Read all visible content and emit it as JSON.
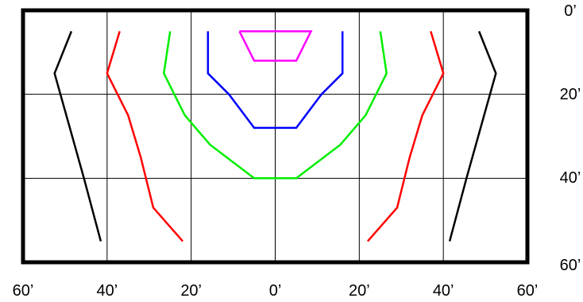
{
  "chart_data": {
    "type": "line",
    "title": "",
    "xlabel": "",
    "ylabel": "",
    "x_ticks": [
      "60’",
      "40’",
      "20’",
      "0’",
      "20’",
      "40’",
      "60’"
    ],
    "x_tick_values": [
      -60,
      -40,
      -20,
      0,
      20,
      40,
      60
    ],
    "y_ticks": [
      "0’",
      "20’",
      "40’",
      "60’"
    ],
    "y_tick_values": [
      0,
      20,
      40,
      60
    ],
    "xlim": [
      -60,
      60
    ],
    "ylim": [
      0,
      60
    ],
    "y_inverted": true,
    "grid": true,
    "legend": "none",
    "series": [
      {
        "color": "#000000",
        "points": [
          [
            -48.5,
            5
          ],
          [
            -52.5,
            15
          ],
          [
            -45.5,
            40
          ],
          [
            -41.5,
            55
          ]
        ]
      },
      {
        "color": "#000000",
        "points": [
          [
            48.5,
            5
          ],
          [
            52.5,
            15
          ],
          [
            45.5,
            40
          ],
          [
            41.5,
            55
          ]
        ]
      },
      {
        "color": "#ff0000",
        "points": [
          [
            -37,
            5
          ],
          [
            -40,
            15
          ],
          [
            -35,
            25
          ],
          [
            -32,
            35
          ],
          [
            -29,
            47
          ],
          [
            -22,
            55
          ]
        ]
      },
      {
        "color": "#ff0000",
        "points": [
          [
            37,
            5
          ],
          [
            40,
            15
          ],
          [
            35,
            25
          ],
          [
            32,
            35
          ],
          [
            29,
            47
          ],
          [
            22,
            55
          ]
        ]
      },
      {
        "color": "#00ee00",
        "points": [
          [
            -25,
            5
          ],
          [
            -26.5,
            15
          ],
          [
            -21.5,
            25
          ],
          [
            -15.5,
            32
          ],
          [
            -5,
            40
          ],
          [
            5,
            40
          ],
          [
            15.5,
            32
          ],
          [
            21.5,
            25
          ],
          [
            26.5,
            15
          ],
          [
            25,
            5
          ]
        ]
      },
      {
        "color": "#0000ff",
        "points": [
          [
            -16,
            5
          ],
          [
            -16,
            15
          ],
          [
            -11,
            20
          ],
          [
            -5,
            28
          ],
          [
            5,
            28
          ],
          [
            11,
            20
          ],
          [
            16,
            15
          ],
          [
            16,
            5
          ]
        ]
      },
      {
        "color": "#ff00ff",
        "points": [
          [
            -8.5,
            5
          ],
          [
            8.5,
            5
          ],
          [
            5,
            12
          ],
          [
            -5,
            12
          ],
          [
            -8.5,
            5
          ]
        ]
      }
    ]
  }
}
